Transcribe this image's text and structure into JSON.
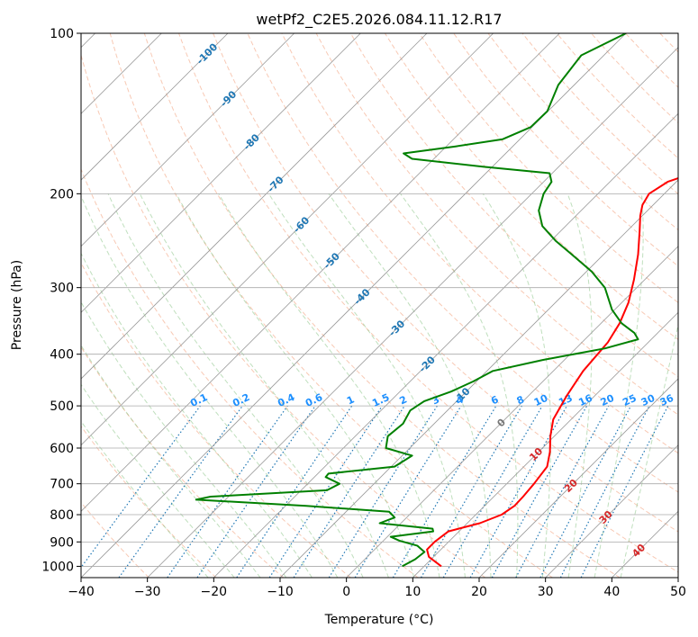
{
  "chart_data": {
    "type": "line",
    "title": "wetPf2_C2E5.2026.084.11.12.R17",
    "xlabel": "Temperature (°C)",
    "ylabel": "Pressure (hPa)",
    "xlim": [
      -40,
      50
    ],
    "ylim": [
      1050,
      100
    ],
    "y_scale": "log",
    "skew": "skew-T log-P",
    "grid": true,
    "x_ticks": [
      "−40",
      "−30",
      "−20",
      "−10",
      "0",
      "10",
      "20",
      "30",
      "40",
      "50"
    ],
    "x_tick_values": [
      -40,
      -30,
      -20,
      -10,
      0,
      10,
      20,
      30,
      40,
      50
    ],
    "y_ticks": [
      "100",
      "200",
      "300",
      "400",
      "500",
      "600",
      "700",
      "800",
      "900",
      "1000"
    ],
    "y_tick_values": [
      100,
      200,
      300,
      400,
      500,
      600,
      700,
      800,
      900,
      1000
    ],
    "series": [
      {
        "color": "#ff0000",
        "points": [
          [
            1000,
            12.6
          ],
          [
            960,
            9.3
          ],
          [
            930,
            7.9
          ],
          [
            900,
            7.9
          ],
          [
            860,
            8.4
          ],
          [
            830,
            11.9
          ],
          [
            800,
            13.9
          ],
          [
            770,
            14.5
          ],
          [
            740,
            14.4
          ],
          [
            700,
            14.1
          ],
          [
            650,
            13.5
          ],
          [
            610,
            11.7
          ],
          [
            570,
            9.4
          ],
          [
            530,
            7.3
          ],
          [
            480,
            5.8
          ],
          [
            430,
            4.5
          ],
          [
            380,
            3.9
          ],
          [
            350,
            2.8
          ],
          [
            320,
            1.0
          ],
          [
            290,
            -1.6
          ],
          [
            260,
            -4.8
          ],
          [
            235,
            -8.1
          ],
          [
            220,
            -10.3
          ],
          [
            210,
            -11.6
          ],
          [
            200,
            -12.3
          ],
          [
            190,
            -11.3
          ],
          [
            182,
            -8.5
          ],
          [
            175,
            -3.0
          ],
          [
            168,
            2.1
          ],
          [
            160,
            5.9
          ],
          [
            150,
            8.1
          ],
          [
            135,
            9.9
          ],
          [
            120,
            10.5
          ],
          [
            110,
            12.6
          ],
          [
            100,
            15.0
          ]
        ]
      },
      {
        "color": "#008000",
        "points": [
          [
            1000,
            6.7
          ],
          [
            970,
            7.6
          ],
          [
            940,
            7.9
          ],
          [
            915,
            5.9
          ],
          [
            895,
            2.4
          ],
          [
            880,
            0.5
          ],
          [
            860,
            6.1
          ],
          [
            850,
            5.6
          ],
          [
            830,
            -3.2
          ],
          [
            810,
            -1.8
          ],
          [
            790,
            -3.5
          ],
          [
            770,
            -16.9
          ],
          [
            750,
            -34.4
          ],
          [
            740,
            -32.7
          ],
          [
            720,
            -16.1
          ],
          [
            700,
            -15.2
          ],
          [
            680,
            -18.3
          ],
          [
            670,
            -18.4
          ],
          [
            650,
            -9.5
          ],
          [
            620,
            -8.5
          ],
          [
            600,
            -13.6
          ],
          [
            570,
            -15.1
          ],
          [
            540,
            -14.7
          ],
          [
            510,
            -15.6
          ],
          [
            490,
            -14.9
          ],
          [
            470,
            -12.3
          ],
          [
            450,
            -10.5
          ],
          [
            430,
            -9.1
          ],
          [
            410,
            -3.2
          ],
          [
            390,
            4.4
          ],
          [
            375,
            8.0
          ],
          [
            365,
            6.5
          ],
          [
            350,
            3.1
          ],
          [
            330,
            -0.4
          ],
          [
            300,
            -4.8
          ],
          [
            280,
            -9.2
          ],
          [
            260,
            -14.8
          ],
          [
            245,
            -19.3
          ],
          [
            230,
            -23.5
          ],
          [
            215,
            -26.4
          ],
          [
            200,
            -28.2
          ],
          [
            190,
            -28.8
          ],
          [
            183,
            -30.4
          ],
          [
            178,
            -41.3
          ],
          [
            172,
            -53.3
          ],
          [
            168,
            -55.4
          ],
          [
            163,
            -48.6
          ],
          [
            158,
            -42.6
          ],
          [
            150,
            -40.2
          ],
          [
            140,
            -40.1
          ],
          [
            125,
            -42.4
          ],
          [
            110,
            -43.4
          ],
          [
            100,
            -40.0
          ]
        ]
      }
    ],
    "dry_adiabats_K": [
      240,
      250,
      260,
      270,
      280,
      290,
      300,
      310,
      320,
      330,
      340,
      350,
      360,
      370,
      380,
      390,
      400,
      410,
      420,
      430,
      440,
      450,
      460
    ],
    "isotherm_labels": [
      "-100",
      "-90",
      "-80",
      "-70",
      "-60",
      "-50",
      "-40",
      "-30",
      "-20",
      "-10",
      "0",
      "10",
      "20",
      "30",
      "40"
    ],
    "mixing_ratio_labels": [
      "0.1",
      "0.2",
      "0.4",
      "0.6",
      "1",
      "1.5",
      "2",
      "3",
      "4",
      "6",
      "8",
      "10",
      "13",
      "16",
      "20",
      "25",
      "30",
      "36"
    ],
    "mixing_ratio_values": [
      0.1,
      0.2,
      0.4,
      0.6,
      1,
      1.5,
      2,
      3,
      4,
      6,
      8,
      10,
      13,
      16,
      20,
      25,
      30,
      36
    ]
  }
}
